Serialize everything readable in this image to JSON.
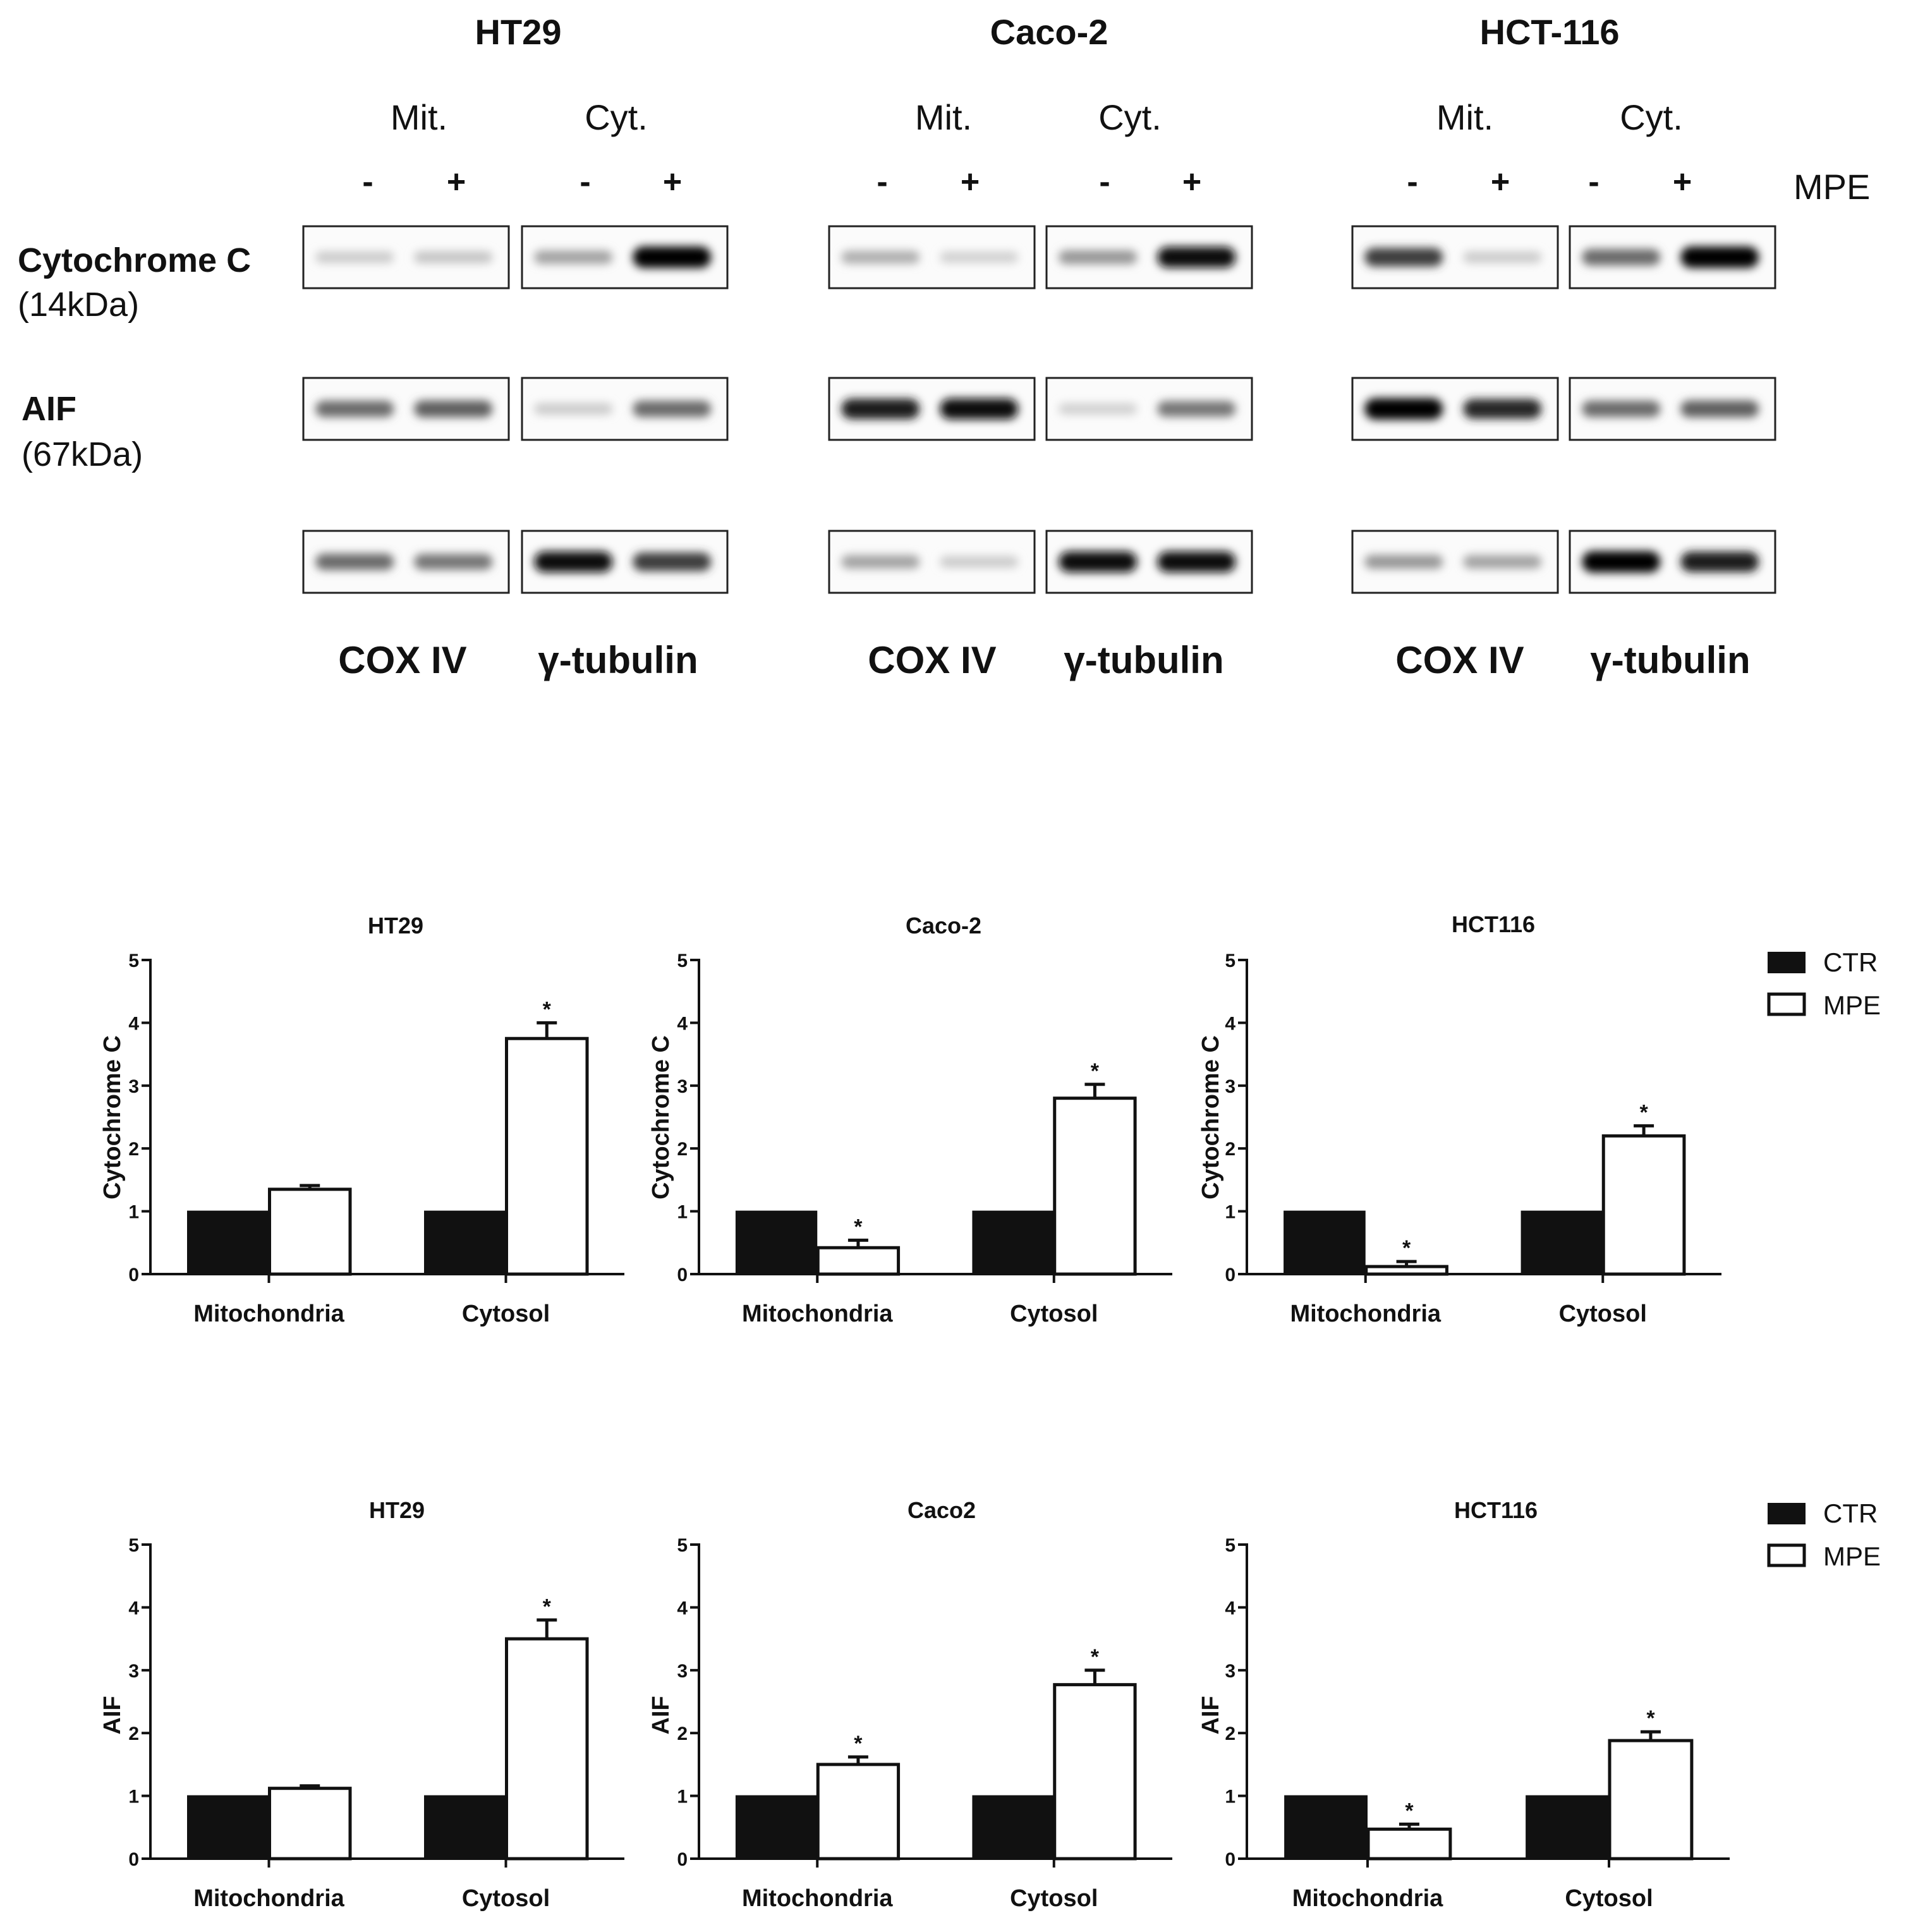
{
  "blot": {
    "cell_lines": [
      "HT29",
      "Caco-2",
      "HCT-116"
    ],
    "fractions": [
      "Mit.",
      "Cyt."
    ],
    "treatment_signs": [
      "-",
      "+",
      "-",
      "+"
    ],
    "treatment_label": "MPE",
    "rows": [
      {
        "name": "Cytochrome C",
        "mw": "(14kDa)"
      },
      {
        "name": "AIF",
        "mw": "(67kDa)"
      },
      {
        "name": "",
        "mw": ""
      }
    ],
    "loading_controls": [
      "COX IV",
      "γ-tubulin"
    ]
  },
  "legend": {
    "ctr": "CTR",
    "mpe": "MPE"
  },
  "chart_data": [
    {
      "type": "bar",
      "title": "HT29",
      "ylabel": "Cytochrome C",
      "categories": [
        "Mitochondria",
        "Cytosol"
      ],
      "ylim": [
        0,
        5
      ],
      "yticks": [
        0,
        1,
        2,
        3,
        4,
        5
      ],
      "series": [
        {
          "name": "CTR",
          "values": [
            1,
            1
          ],
          "errors": [
            0,
            0
          ]
        },
        {
          "name": "MPE",
          "values": [
            1.35,
            3.75
          ],
          "errors": [
            0.06,
            0.25
          ]
        }
      ],
      "annotations": [
        [
          "",
          ""
        ],
        [
          "",
          "*"
        ]
      ]
    },
    {
      "type": "bar",
      "title": "Caco-2",
      "ylabel": "Cytochrome C",
      "categories": [
        "Mitochondria",
        "Cytosol"
      ],
      "ylim": [
        0,
        5
      ],
      "yticks": [
        0,
        1,
        2,
        3,
        4,
        5
      ],
      "series": [
        {
          "name": "CTR",
          "values": [
            1,
            1
          ],
          "errors": [
            0,
            0
          ]
        },
        {
          "name": "MPE",
          "values": [
            0.42,
            2.8
          ],
          "errors": [
            0.12,
            0.22
          ]
        }
      ],
      "annotations": [
        [
          "",
          ""
        ],
        [
          "*",
          "*"
        ]
      ]
    },
    {
      "type": "bar",
      "title": "HCT116",
      "ylabel": "Cytochrome C",
      "categories": [
        "Mitochondria",
        "Cytosol"
      ],
      "ylim": [
        0,
        5
      ],
      "yticks": [
        0,
        1,
        2,
        3,
        4,
        5
      ],
      "series": [
        {
          "name": "CTR",
          "values": [
            1,
            1
          ],
          "errors": [
            0,
            0
          ]
        },
        {
          "name": "MPE",
          "values": [
            0.12,
            2.2
          ],
          "errors": [
            0.08,
            0.16
          ]
        }
      ],
      "annotations": [
        [
          "",
          ""
        ],
        [
          "*",
          "*"
        ]
      ]
    },
    {
      "type": "bar",
      "title": "HT29",
      "ylabel": "AIF",
      "categories": [
        "Mitochondria",
        "Cytosol"
      ],
      "ylim": [
        0,
        5
      ],
      "yticks": [
        0,
        1,
        2,
        3,
        4,
        5
      ],
      "series": [
        {
          "name": "CTR",
          "values": [
            1,
            1
          ],
          "errors": [
            0,
            0
          ]
        },
        {
          "name": "MPE",
          "values": [
            1.12,
            3.5
          ],
          "errors": [
            0.04,
            0.3
          ]
        }
      ],
      "annotations": [
        [
          "",
          ""
        ],
        [
          "",
          "*"
        ]
      ]
    },
    {
      "type": "bar",
      "title": "Caco2",
      "ylabel": "AIF",
      "categories": [
        "Mitochondria",
        "Cytosol"
      ],
      "ylim": [
        0,
        5
      ],
      "yticks": [
        0,
        1,
        2,
        3,
        4,
        5
      ],
      "series": [
        {
          "name": "CTR",
          "values": [
            1,
            1
          ],
          "errors": [
            0,
            0
          ]
        },
        {
          "name": "MPE",
          "values": [
            1.5,
            2.77
          ],
          "errors": [
            0.12,
            0.23
          ]
        }
      ],
      "annotations": [
        [
          "",
          ""
        ],
        [
          "*",
          "*"
        ]
      ]
    },
    {
      "type": "bar",
      "title": "HCT116",
      "ylabel": "AIF",
      "categories": [
        "Mitochondria",
        "Cytosol"
      ],
      "ylim": [
        0,
        5
      ],
      "yticks": [
        0,
        1,
        2,
        3,
        4,
        5
      ],
      "series": [
        {
          "name": "CTR",
          "values": [
            1,
            1
          ],
          "errors": [
            0,
            0
          ]
        },
        {
          "name": "MPE",
          "values": [
            0.47,
            1.88
          ],
          "errors": [
            0.08,
            0.14
          ]
        }
      ],
      "annotations": [
        [
          "",
          ""
        ],
        [
          "*",
          "*"
        ]
      ]
    }
  ]
}
